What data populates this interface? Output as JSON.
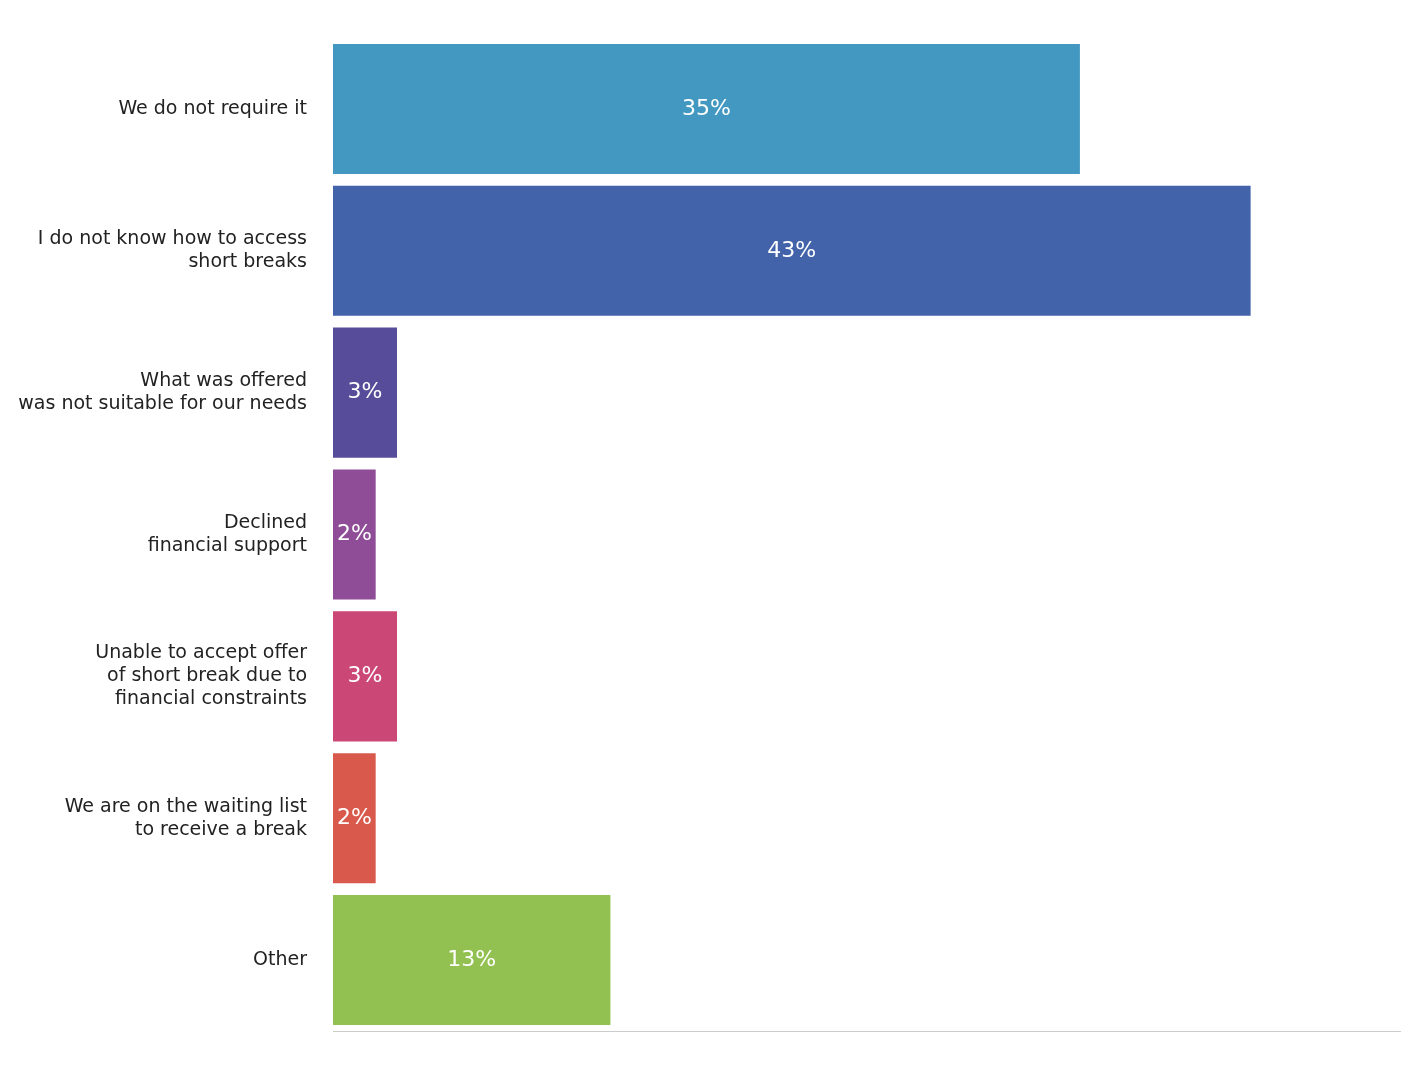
{
  "chart_data": {
    "type": "bar",
    "orientation": "horizontal",
    "categories": [
      "We do not require it",
      "I do not know how to access\nshort breaks",
      "What was offered\nwas not suitable for our needs",
      "Declined\nfinancial support",
      "Unable to accept offer\nof short break due to\nfinancial constraints",
      "We are on the waiting list\nto receive a break",
      "Other"
    ],
    "values": [
      35,
      43,
      3,
      2,
      3,
      2,
      13
    ],
    "value_labels": [
      "35%",
      "43%",
      "3%",
      "2%",
      "3%",
      "2%",
      "13%"
    ],
    "colors": [
      "#4398c1",
      "#4263aa",
      "#574c9a",
      "#8f4d97",
      "#cb4775",
      "#d95a4d",
      "#92c151"
    ],
    "xlim": [
      0,
      50
    ],
    "grid": false,
    "legend": false,
    "data_labels": true,
    "tick_labels": "y"
  }
}
